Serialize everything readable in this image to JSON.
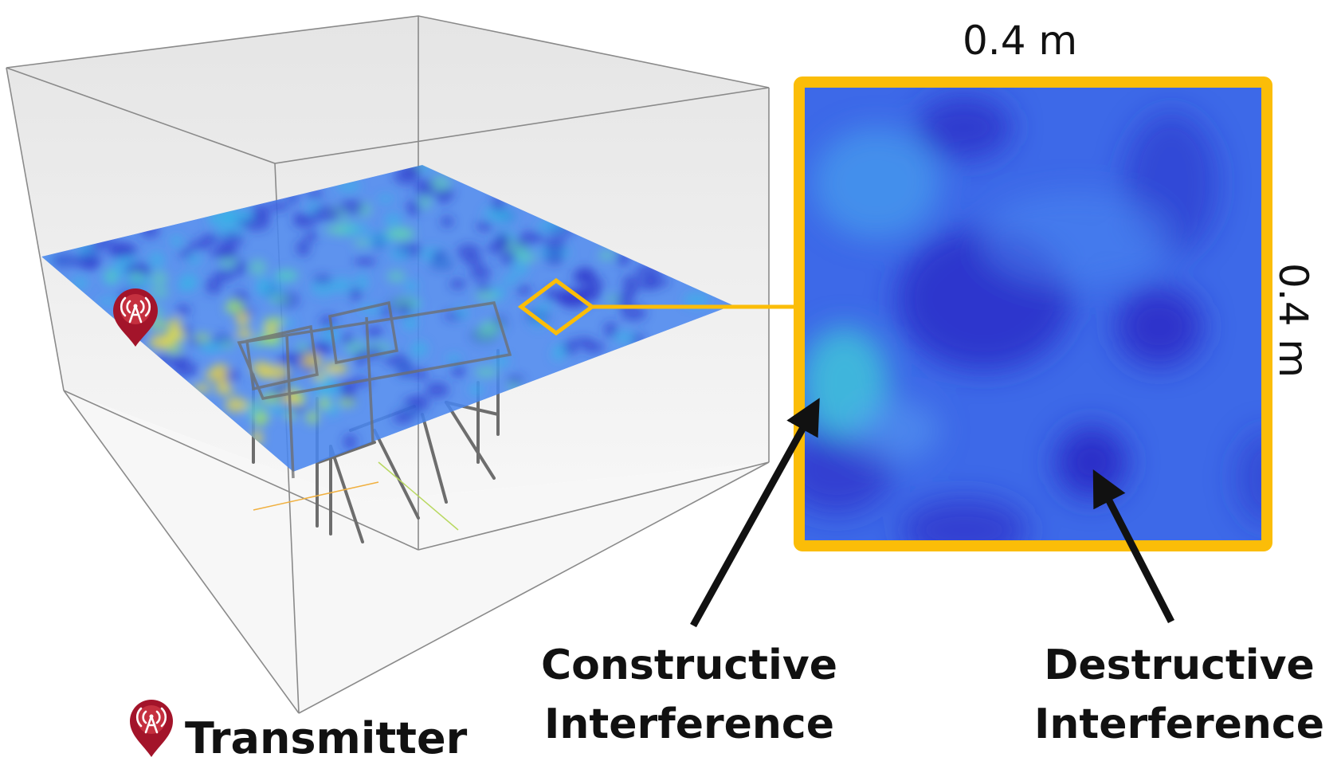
{
  "labels": {
    "width": "0.4 m",
    "height": "0.4 m",
    "constructive_line1": "Constructive",
    "constructive_line2": "Interference",
    "destructive_line1": "Destructive",
    "destructive_line2": "Interference",
    "legend": "Transmitter"
  },
  "icons": {
    "transmitter": "transmitter-pin-icon"
  },
  "colors": {
    "highlight": "#fbbd08",
    "marker": "#a3142a",
    "field_base": "#3b6bea",
    "field_low": "#2c2fc8",
    "field_high": "#f2dc3c",
    "arrow": "#111111"
  }
}
